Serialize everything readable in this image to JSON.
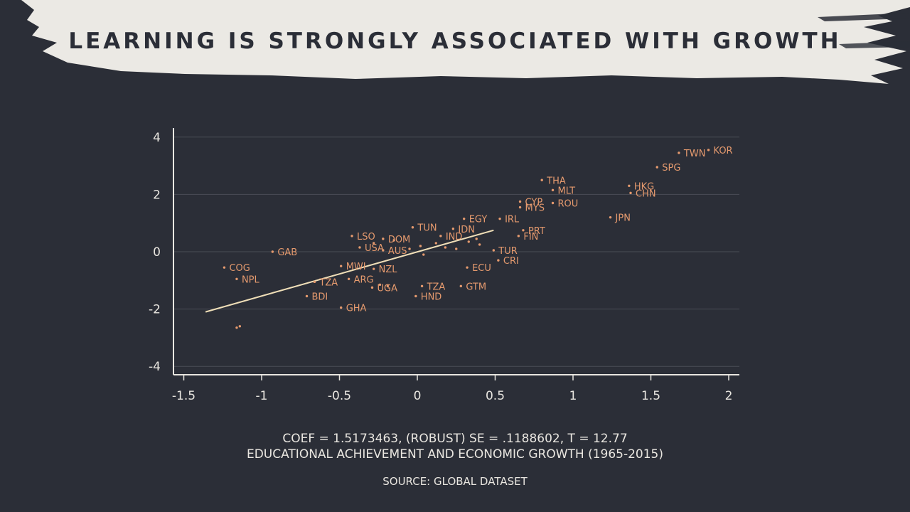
{
  "slide": {
    "title": "LEARNING IS STRONGLY ASSOCIATED WITH GROWTH",
    "caption_line1": "COEF = 1.5173463, (ROBUST) SE = .1188602, T = 12.77",
    "caption_line2": "EDUCATIONAL ACHIEVEMENT AND ECONOMIC GROWTH (1965-2015)",
    "source": "SOURCE: GLOBAL DATASET"
  },
  "colors": {
    "background": "#2b2e37",
    "banner": "#ebe9e4",
    "points": "#e59a6e",
    "dim_points": "#8a6a5c",
    "fit_line": "#f0dfb8",
    "axis": "#e9e6e0",
    "grid": "#4a4d56"
  },
  "chart_data": {
    "type": "scatter",
    "title": "",
    "xlabel": "",
    "ylabel": "",
    "xlim": [
      -1.55,
      2.05
    ],
    "ylim": [
      -4.3,
      4.3
    ],
    "x_ticks": [
      "-1.5",
      "-1",
      "-0.5",
      "0",
      "0.5",
      "1",
      "1.5",
      "2"
    ],
    "x_tick_values": [
      -1.5,
      -1,
      -0.5,
      0,
      0.5,
      1,
      1.5,
      2
    ],
    "y_ticks": [
      "4",
      "2",
      "0",
      "-2",
      "-4"
    ],
    "y_tick_values": [
      4,
      2,
      0,
      -2,
      -4
    ],
    "grid": true,
    "fit_line": {
      "coef": 1.5173463,
      "x": [
        -1.36,
        0.49
      ],
      "y": [
        -2.1,
        0.75
      ]
    },
    "points": [
      {
        "label": "TWN",
        "x": 1.68,
        "y": 3.45
      },
      {
        "label": "KOR",
        "x": 1.87,
        "y": 3.55
      },
      {
        "label": "SPG",
        "x": 1.54,
        "y": 2.95
      },
      {
        "label": "THA",
        "x": 0.8,
        "y": 2.5
      },
      {
        "label": "MLT",
        "x": 0.87,
        "y": 2.15
      },
      {
        "label": "HKG",
        "x": 1.36,
        "y": 2.3
      },
      {
        "label": "CHN",
        "x": 1.37,
        "y": 2.05
      },
      {
        "label": "CYP",
        "x": 0.66,
        "y": 1.75
      },
      {
        "label": "MYS",
        "x": 0.66,
        "y": 1.55
      },
      {
        "label": "ROU",
        "x": 0.87,
        "y": 1.7
      },
      {
        "label": "JPN",
        "x": 1.24,
        "y": 1.2
      },
      {
        "label": "EGY",
        "x": 0.3,
        "y": 1.15
      },
      {
        "label": "IRL",
        "x": 0.53,
        "y": 1.15
      },
      {
        "label": "TUN",
        "x": -0.03,
        "y": 0.85
      },
      {
        "label": "IDN",
        "x": 0.23,
        "y": 0.8
      },
      {
        "label": "PRT",
        "x": 0.68,
        "y": 0.75
      },
      {
        "label": "FIN",
        "x": 0.65,
        "y": 0.55
      },
      {
        "label": "LSO",
        "x": -0.42,
        "y": 0.55
      },
      {
        "label": "DOM",
        "x": -0.22,
        "y": 0.45
      },
      {
        "label": "IND",
        "x": 0.15,
        "y": 0.55
      },
      {
        "label": "USA",
        "x": -0.37,
        "y": 0.15
      },
      {
        "label": "AUS",
        "x": -0.22,
        "y": 0.05
      },
      {
        "label": "GAB",
        "x": -0.93,
        "y": 0
      },
      {
        "label": "TUR",
        "x": 0.49,
        "y": 0.05
      },
      {
        "label": "CRI",
        "x": 0.52,
        "y": -0.3
      },
      {
        "label": "COG",
        "x": -1.24,
        "y": -0.55
      },
      {
        "label": "NPL",
        "x": -1.16,
        "y": -0.95
      },
      {
        "label": "MWI",
        "x": -0.49,
        "y": -0.5
      },
      {
        "label": "NZL",
        "x": -0.28,
        "y": -0.6
      },
      {
        "label": "ECU",
        "x": 0.32,
        "y": -0.55
      },
      {
        "label": "ARG",
        "x": -0.44,
        "y": -0.95
      },
      {
        "label": "TZA",
        "x": 0.03,
        "y": -1.2
      },
      {
        "label": "GTM",
        "x": 0.28,
        "y": -1.2
      },
      {
        "label": "UGA",
        "x": -0.29,
        "y": -1.25
      },
      {
        "label": "HND",
        "x": -0.01,
        "y": -1.55
      },
      {
        "label": "TZA",
        "x": -0.66,
        "y": -1.05
      },
      {
        "label": "BDI",
        "x": -0.71,
        "y": -1.55
      },
      {
        "label": "GHA",
        "x": -0.49,
        "y": -1.95
      },
      {
        "label": "",
        "x": -1.14,
        "y": -2.6
      },
      {
        "label": "",
        "x": -1.16,
        "y": -2.65
      },
      {
        "label": "",
        "x": -0.28,
        "y": 0.3
      },
      {
        "label": "",
        "x": -0.15,
        "y": 0.4
      },
      {
        "label": "",
        "x": -0.05,
        "y": 0.1
      },
      {
        "label": "",
        "x": 0.02,
        "y": 0.2
      },
      {
        "label": "",
        "x": 0.04,
        "y": -0.1
      },
      {
        "label": "",
        "x": 0.12,
        "y": 0.3
      },
      {
        "label": "",
        "x": 0.18,
        "y": 0.15
      },
      {
        "label": "",
        "x": 0.25,
        "y": 0.1
      },
      {
        "label": "",
        "x": 0.33,
        "y": 0.35
      },
      {
        "label": "",
        "x": 0.4,
        "y": 0.25
      },
      {
        "label": "",
        "x": 0.38,
        "y": 0.45
      },
      {
        "label": "",
        "x": -0.19,
        "y": -1.2
      },
      {
        "label": "",
        "x": -0.24,
        "y": -1.15
      }
    ]
  }
}
